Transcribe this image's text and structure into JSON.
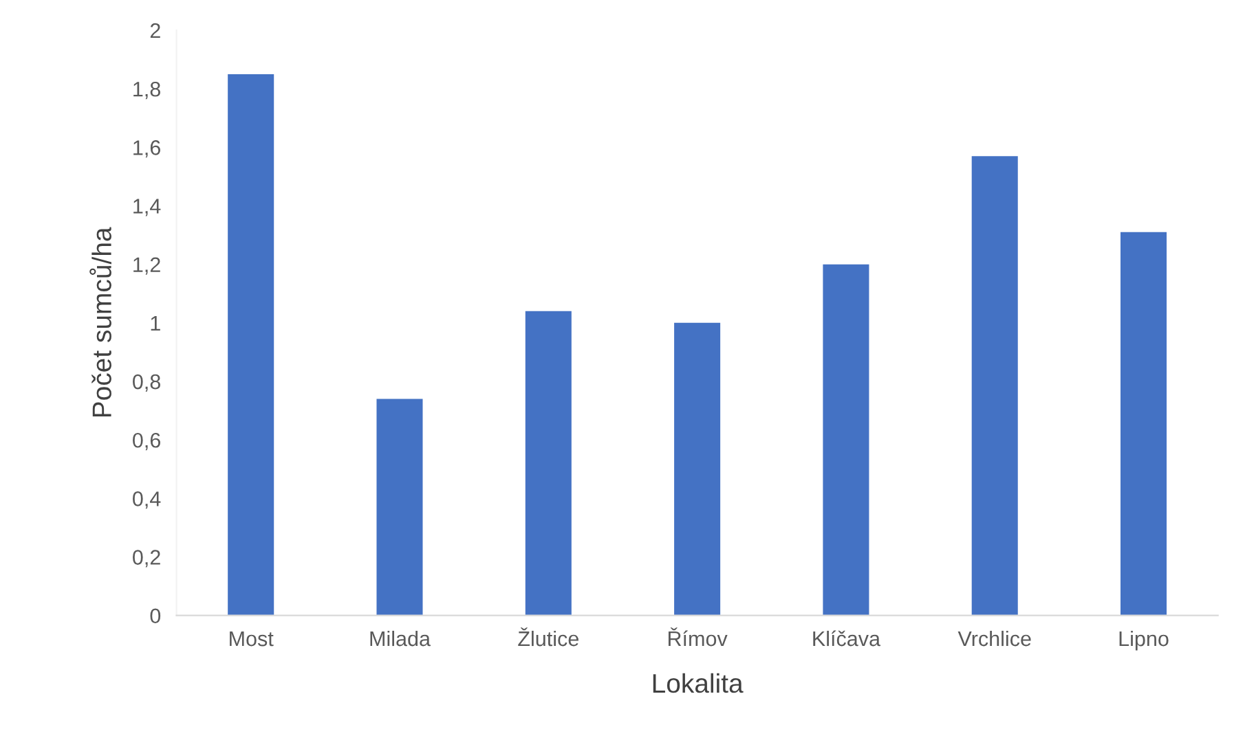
{
  "chart_data": {
    "type": "bar",
    "xlabel": "Lokalita",
    "ylabel": "Počet sumců/ha",
    "categories": [
      "Most",
      "Milada",
      "Žlutice",
      "Římov",
      "Klíčava",
      "Vrchlice",
      "Lipno"
    ],
    "values": [
      1.85,
      0.74,
      1.04,
      1.0,
      1.2,
      1.57,
      1.31
    ],
    "color": "#4472c4",
    "ylim": [
      0,
      2
    ],
    "yticks": [
      0,
      {
        "value": 0.2,
        "label": "0,2"
      },
      {
        "value": 0.4,
        "label": "0,4"
      },
      {
        "value": 0.6,
        "label": "0,6"
      },
      {
        "value": 0.8,
        "label": "0,8"
      },
      1,
      {
        "value": 1.2,
        "label": "1,2"
      },
      {
        "value": 1.4,
        "label": "1,4"
      },
      {
        "value": 1.6,
        "label": "1,6"
      },
      {
        "value": 1.8,
        "label": "1,8"
      },
      2
    ],
    "grid": false,
    "legend": false
  }
}
